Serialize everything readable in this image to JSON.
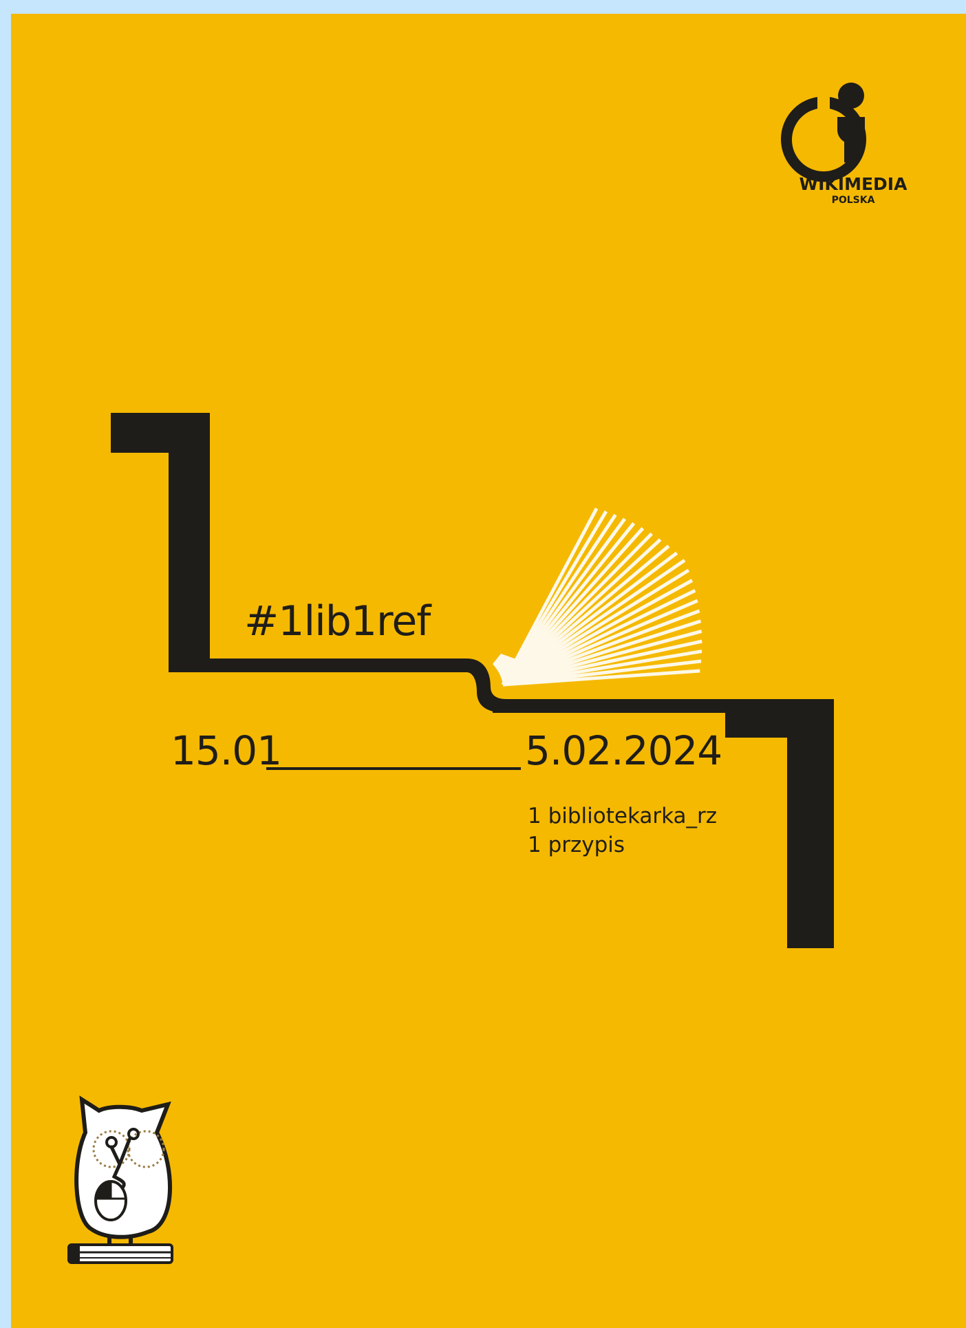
{
  "poster": {
    "hashtag": "#1lib1ref",
    "date_start": "15.01",
    "date_end": "5.02.2024",
    "tagline": [
      "1 bibliotekarka_rz",
      "1 przypis"
    ]
  },
  "logo": {
    "name": "WIKIMEDIA",
    "subtitle": "POLSKA"
  },
  "icons": {
    "logo_icon": "wikimedia-logo-icon",
    "book_icon": "open-book-fan-icon",
    "mascot_icon": "owl-mascot-icon"
  },
  "colors": {
    "page_background": "#c5e6fd",
    "poster_background": "#f5b902",
    "ink": "#1f1d19",
    "book_pages": "#fdf8e8"
  }
}
